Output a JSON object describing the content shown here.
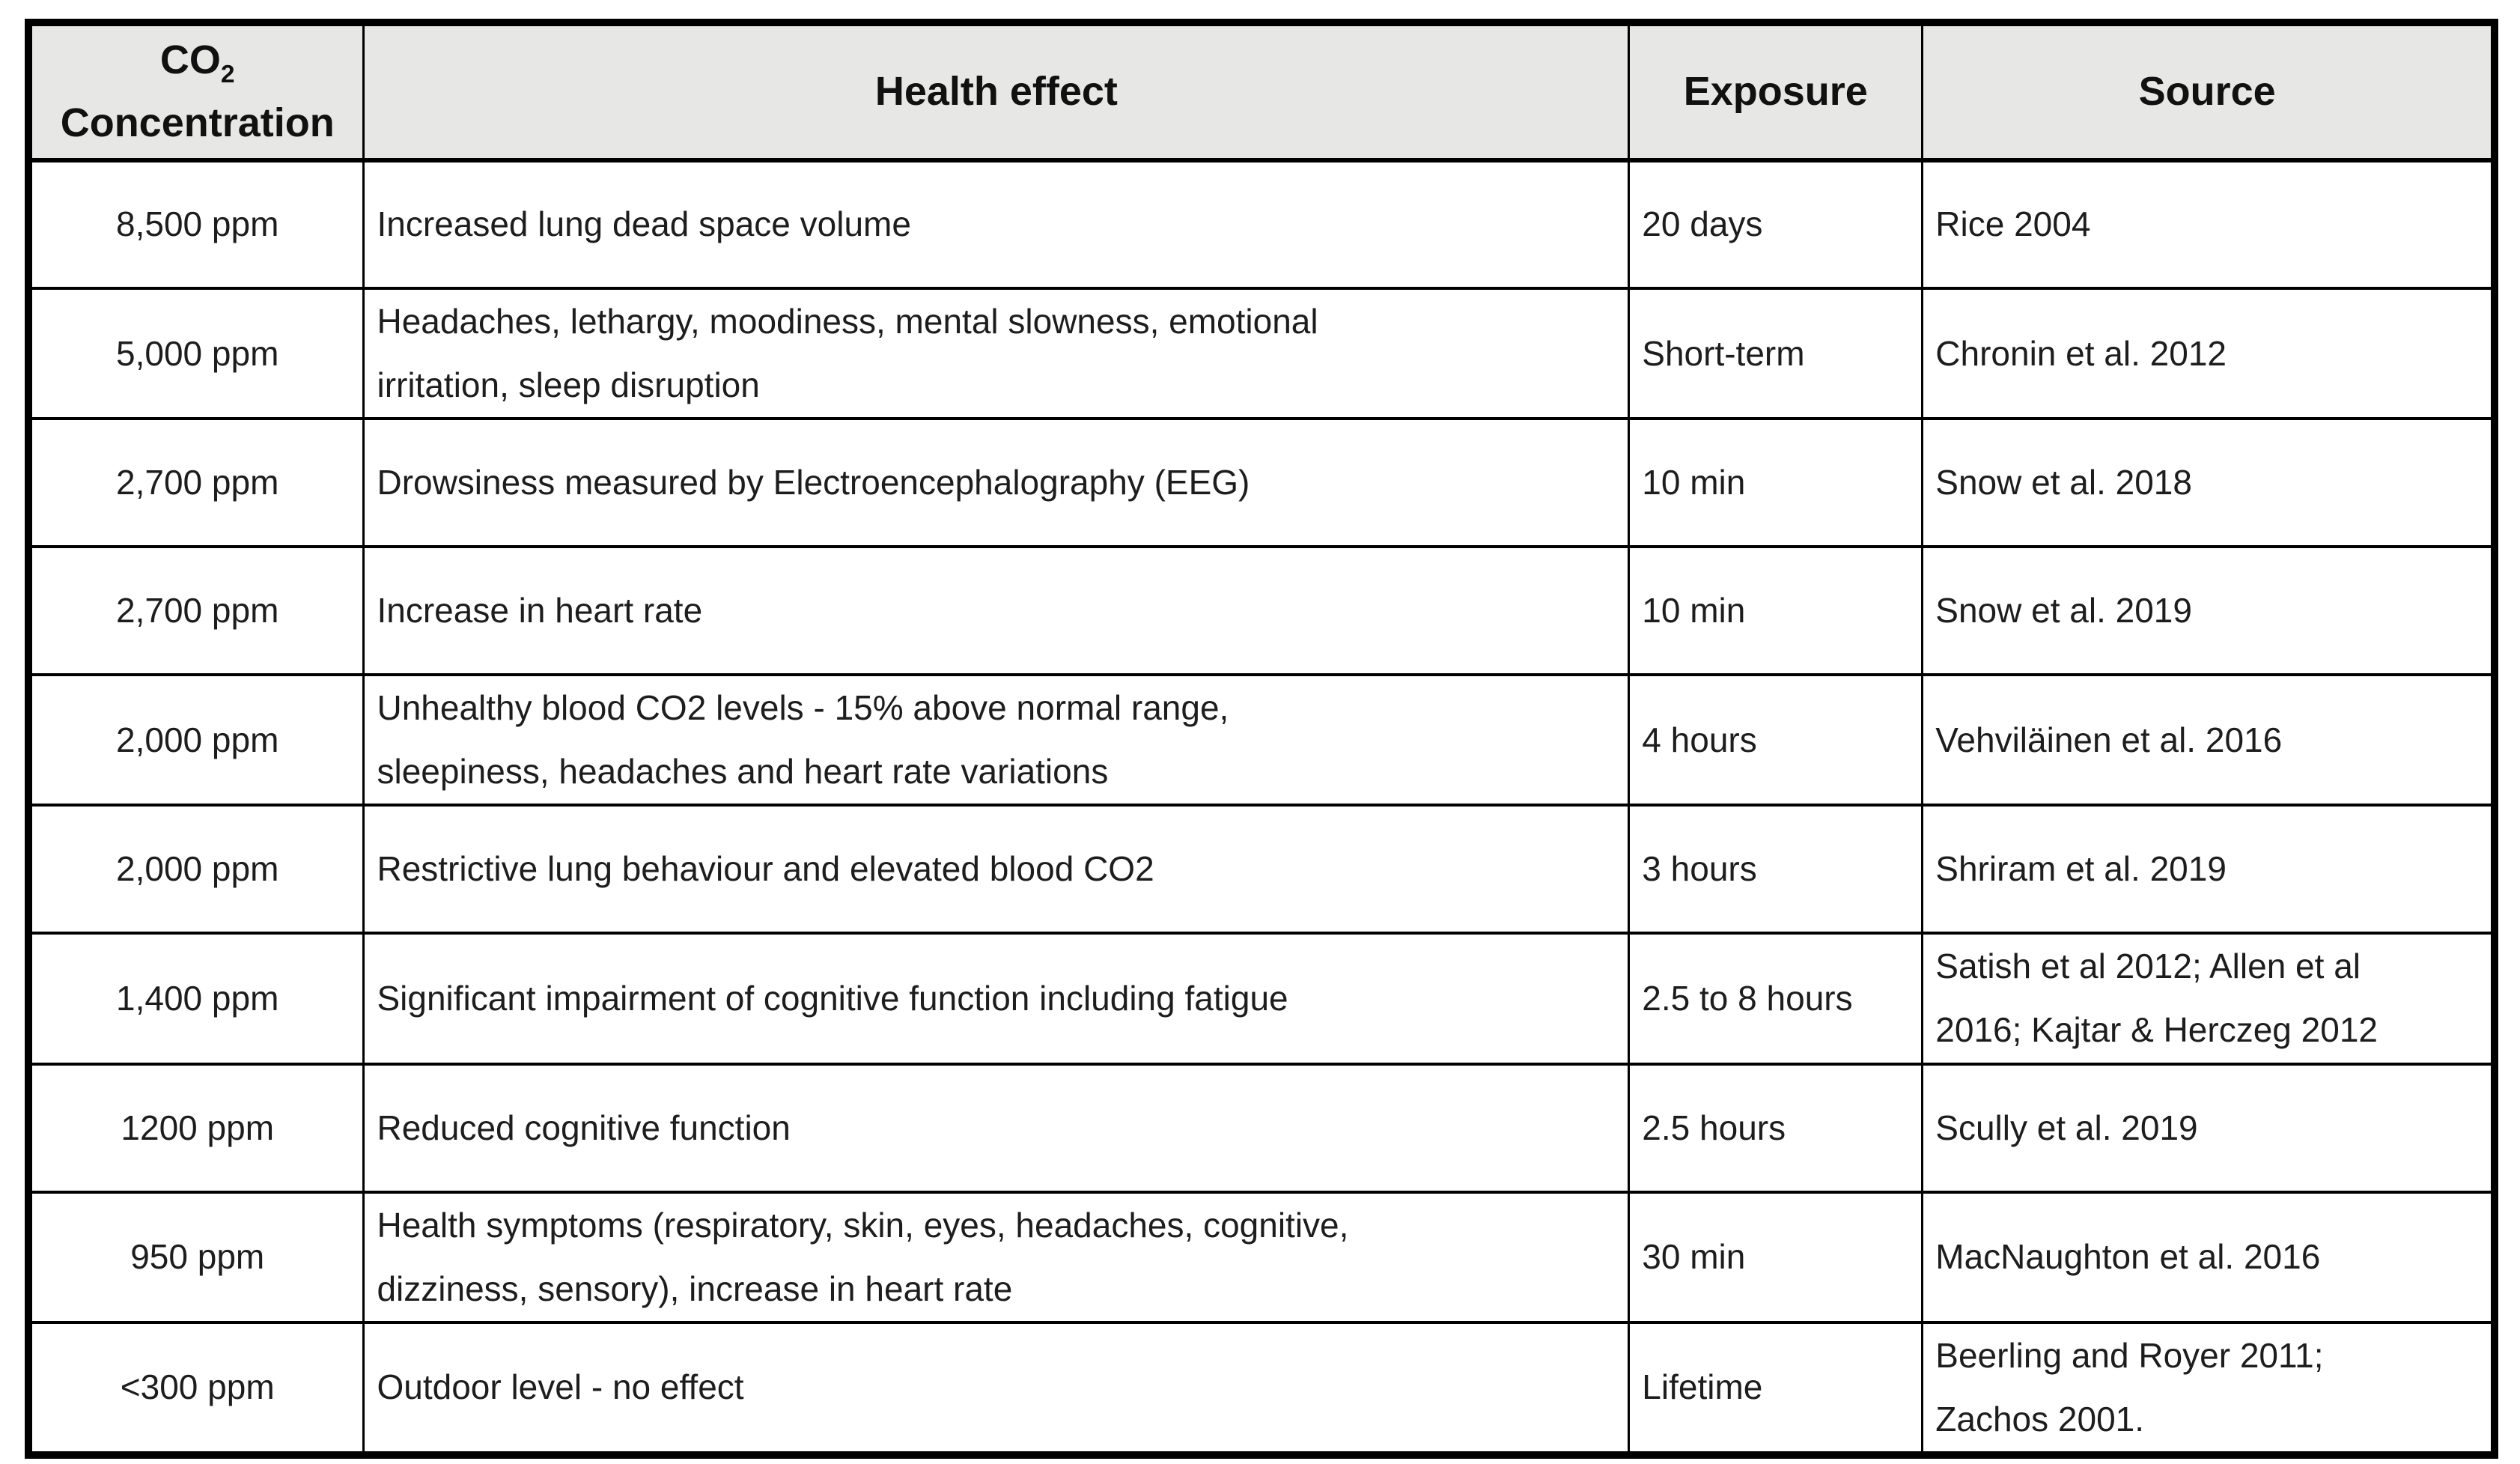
{
  "table": {
    "header": {
      "co2_line1_prefix": "CO",
      "co2_line1_sub": "2",
      "co2_line2": "Concentration",
      "health_effect": "Health effect",
      "exposure": "Exposure",
      "source": "Source"
    },
    "rows": [
      {
        "concentration": "8,500 ppm",
        "health_effect": [
          "Increased lung dead space volume"
        ],
        "exposure": "20 days",
        "source": [
          "Rice 2004"
        ]
      },
      {
        "concentration": "5,000 ppm",
        "health_effect": [
          "Headaches, lethargy, moodiness, mental slowness, emotional",
          "irritation, sleep disruption"
        ],
        "exposure": "Short-term",
        "source": [
          "Chronin et al. 2012"
        ]
      },
      {
        "concentration": "2,700 ppm",
        "health_effect": [
          "Drowsiness measured by Electroencephalography (EEG)"
        ],
        "exposure": "10 min",
        "source": [
          "Snow et al. 2018"
        ]
      },
      {
        "concentration": "2,700 ppm",
        "health_effect": [
          "Increase in heart rate"
        ],
        "exposure": "10 min",
        "source": [
          "Snow et al. 2019"
        ]
      },
      {
        "concentration": "2,000 ppm",
        "health_effect": [
          "Unhealthy blood CO2 levels - 15% above normal range,",
          "sleepiness, headaches and heart rate variations"
        ],
        "exposure": "4 hours",
        "source": [
          "Vehviläinen et al. 2016"
        ]
      },
      {
        "concentration": "2,000 ppm",
        "health_effect": [
          "Restrictive lung behaviour and elevated blood CO2"
        ],
        "exposure": "3 hours",
        "source": [
          "Shriram et al. 2019"
        ]
      },
      {
        "concentration": "1,400 ppm",
        "health_effect": [
          "Significant impairment of cognitive function including fatigue"
        ],
        "exposure": "2.5 to 8 hours",
        "source": [
          "Satish et al 2012; Allen et al",
          "2016; Kajtar & Herczeg 2012"
        ]
      },
      {
        "concentration": "1200 ppm",
        "health_effect": [
          "Reduced cognitive function"
        ],
        "exposure": "2.5 hours",
        "source": [
          "Scully et al. 2019"
        ]
      },
      {
        "concentration": "950 ppm",
        "health_effect": [
          "Health symptoms (respiratory, skin, eyes, headaches, cognitive,",
          "dizziness, sensory), increase in heart rate"
        ],
        "exposure": "30 min",
        "source": [
          "MacNaughton et al. 2016"
        ]
      },
      {
        "concentration": "<300 ppm",
        "health_effect": [
          "Outdoor level - no effect"
        ],
        "exposure": "Lifetime",
        "source": [
          "Beerling and Royer 2011;",
          "Zachos 2001."
        ]
      }
    ]
  },
  "colors": {
    "header_bg": "#e7e7e5",
    "border": "#000000",
    "text": "#1d1d1d"
  }
}
